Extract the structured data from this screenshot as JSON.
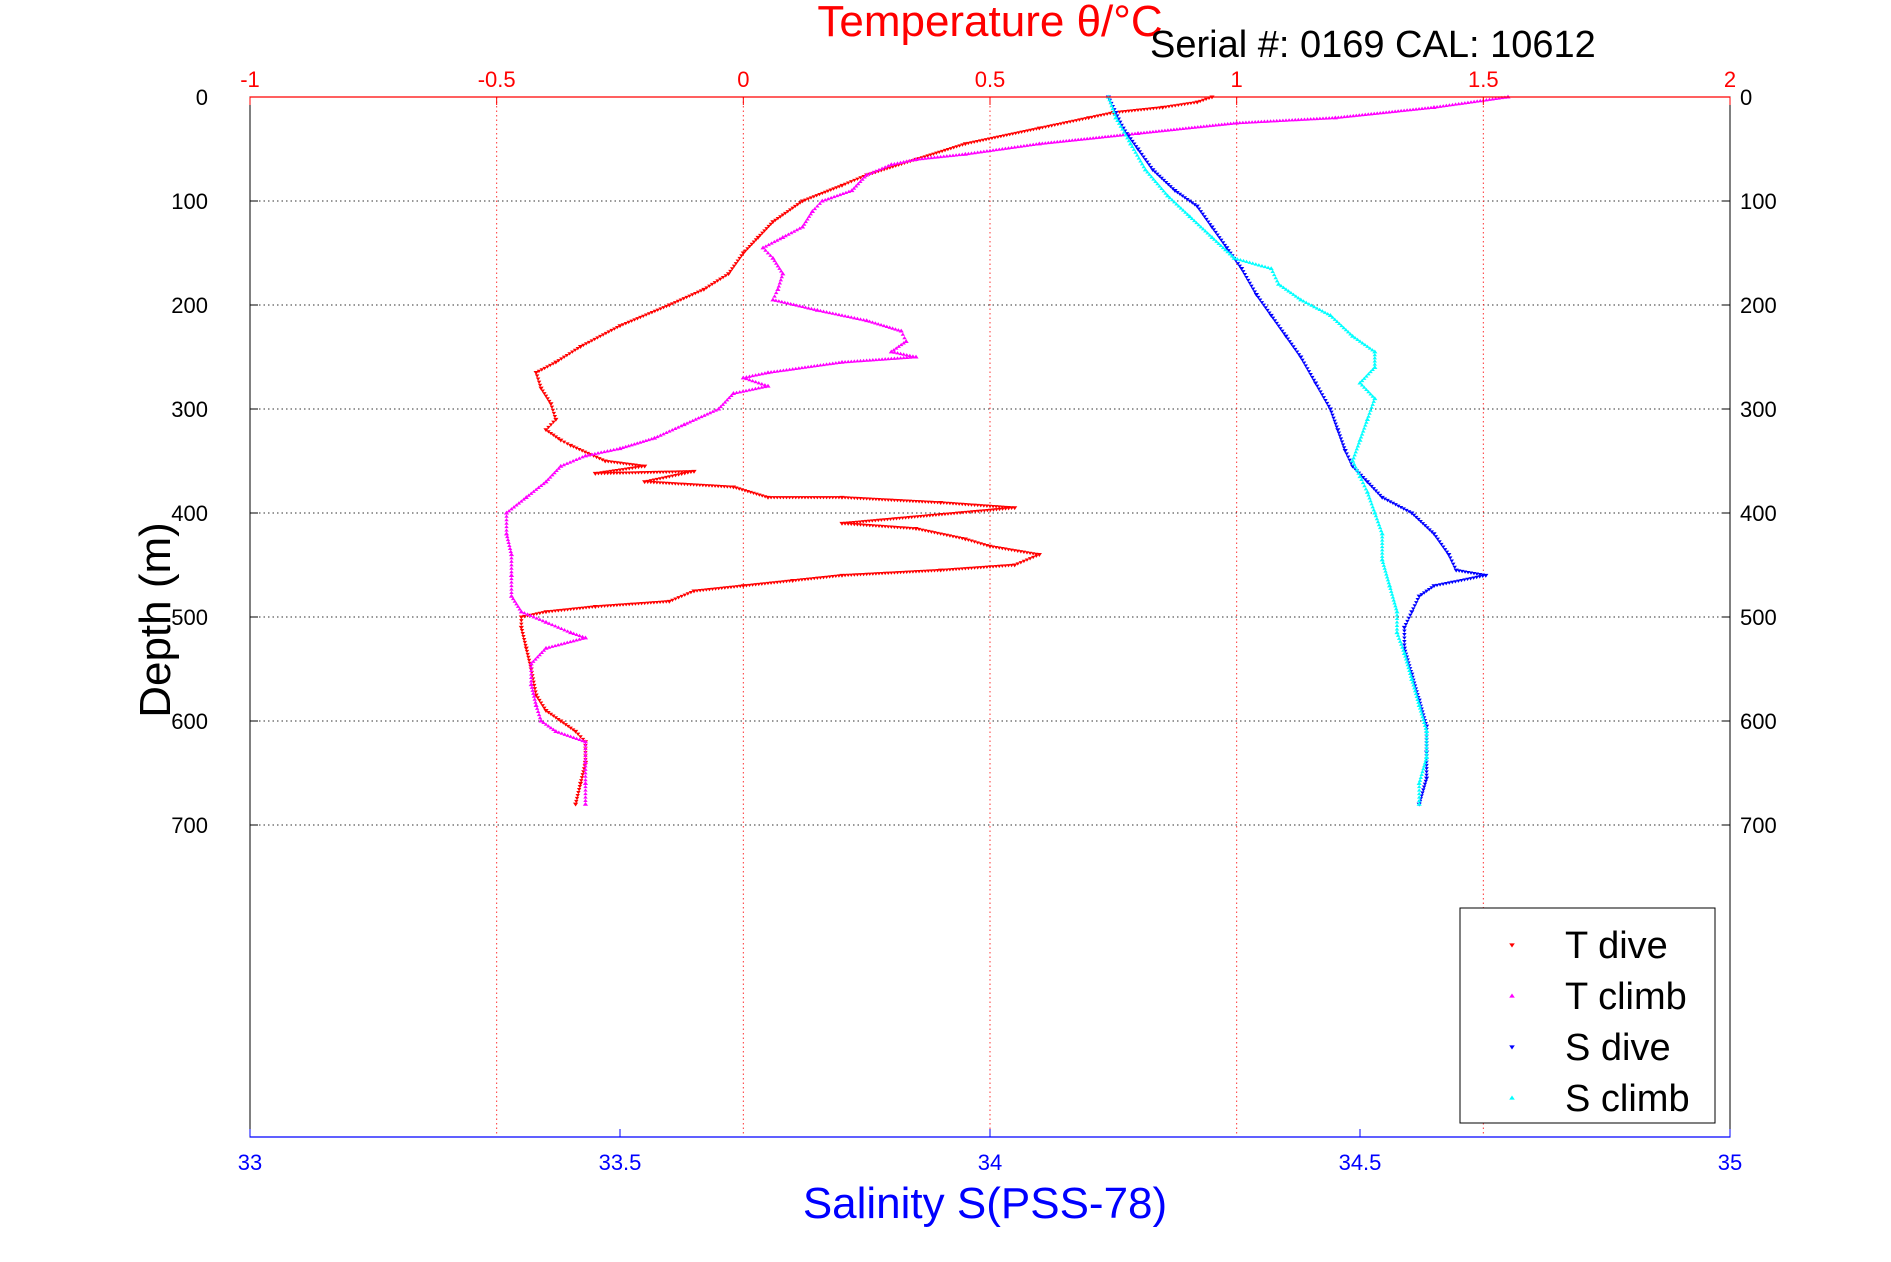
{
  "chart_data": {
    "type": "scatter",
    "title_temperature": "Temperature θ/°C",
    "serial_label": "Serial #: 0169 CAL: 10612",
    "ylabel": "Depth (m)",
    "xlabel_salinity": "Salinity S(PSS-78)",
    "ylim": [
      0,
      1000
    ],
    "y_reversed": true,
    "y_ticks": [
      0,
      100,
      200,
      300,
      400,
      500,
      600,
      700
    ],
    "y_tick_labels": [
      "0",
      "100",
      "200",
      "300",
      "400",
      "500",
      "600",
      "700"
    ],
    "temperature_axis": {
      "range": [
        -1,
        2
      ],
      "ticks": [
        -1,
        -0.5,
        0,
        0.5,
        1,
        1.5,
        2
      ],
      "tick_labels": [
        "-1",
        "-0.5",
        "0",
        "0.5",
        "1",
        "1.5",
        "2"
      ],
      "color": "#ff0000"
    },
    "salinity_axis": {
      "range": [
        33,
        35
      ],
      "ticks": [
        33,
        33.5,
        34,
        34.5,
        35
      ],
      "tick_labels": [
        "33",
        "33.5",
        "34",
        "34.5",
        "35"
      ],
      "color": "#0000ff"
    },
    "grid": true,
    "legend_position": "bottom-right",
    "series": [
      {
        "name": "T dive",
        "axis": "temperature",
        "marker": "triangle-down",
        "color": "#ff0000",
        "points": [
          [
            0.95,
            0
          ],
          [
            0.92,
            5
          ],
          [
            0.85,
            10
          ],
          [
            0.75,
            15
          ],
          [
            0.7,
            20
          ],
          [
            0.6,
            30
          ],
          [
            0.45,
            45
          ],
          [
            0.35,
            60
          ],
          [
            0.25,
            75
          ],
          [
            0.2,
            85
          ],
          [
            0.12,
            100
          ],
          [
            0.06,
            120
          ],
          [
            0.03,
            135
          ],
          [
            0.0,
            150
          ],
          [
            -0.03,
            170
          ],
          [
            -0.08,
            185
          ],
          [
            -0.15,
            200
          ],
          [
            -0.25,
            220
          ],
          [
            -0.33,
            240
          ],
          [
            -0.38,
            255
          ],
          [
            -0.42,
            265
          ],
          [
            -0.41,
            280
          ],
          [
            -0.39,
            295
          ],
          [
            -0.38,
            310
          ],
          [
            -0.4,
            320
          ],
          [
            -0.37,
            330
          ],
          [
            -0.35,
            335
          ],
          [
            -0.28,
            350
          ],
          [
            -0.2,
            355
          ],
          [
            -0.3,
            362
          ],
          [
            -0.1,
            360
          ],
          [
            -0.2,
            370
          ],
          [
            -0.02,
            375
          ],
          [
            0.05,
            385
          ],
          [
            0.2,
            385
          ],
          [
            0.4,
            390
          ],
          [
            0.55,
            395
          ],
          [
            0.2,
            410
          ],
          [
            0.35,
            415
          ],
          [
            0.45,
            425
          ],
          [
            0.5,
            432
          ],
          [
            0.6,
            440
          ],
          [
            0.55,
            450
          ],
          [
            0.4,
            455
          ],
          [
            0.2,
            460
          ],
          [
            0.1,
            465
          ],
          [
            0.0,
            470
          ],
          [
            -0.1,
            475
          ],
          [
            -0.15,
            485
          ],
          [
            -0.3,
            490
          ],
          [
            -0.4,
            495
          ],
          [
            -0.45,
            500
          ],
          [
            -0.45,
            510
          ],
          [
            -0.44,
            530
          ],
          [
            -0.43,
            550
          ],
          [
            -0.42,
            575
          ],
          [
            -0.4,
            590
          ],
          [
            -0.37,
            600
          ],
          [
            -0.34,
            610
          ],
          [
            -0.32,
            620
          ],
          [
            -0.32,
            640
          ],
          [
            -0.33,
            660
          ],
          [
            -0.34,
            680
          ]
        ]
      },
      {
        "name": "T climb",
        "axis": "temperature",
        "marker": "triangle-up",
        "color": "#ff00ff",
        "points": [
          [
            1.55,
            0
          ],
          [
            1.4,
            10
          ],
          [
            1.2,
            20
          ],
          [
            1.0,
            25
          ],
          [
            0.8,
            35
          ],
          [
            0.6,
            45
          ],
          [
            0.45,
            55
          ],
          [
            0.35,
            60
          ],
          [
            0.3,
            65
          ],
          [
            0.25,
            75
          ],
          [
            0.22,
            90
          ],
          [
            0.16,
            100
          ],
          [
            0.14,
            110
          ],
          [
            0.12,
            125
          ],
          [
            0.08,
            135
          ],
          [
            0.04,
            145
          ],
          [
            0.06,
            155
          ],
          [
            0.08,
            170
          ],
          [
            0.07,
            185
          ],
          [
            0.06,
            195
          ],
          [
            0.15,
            205
          ],
          [
            0.25,
            215
          ],
          [
            0.32,
            225
          ],
          [
            0.33,
            235
          ],
          [
            0.3,
            245
          ],
          [
            0.35,
            250
          ],
          [
            0.2,
            255
          ],
          [
            0.05,
            265
          ],
          [
            0.0,
            270
          ],
          [
            0.05,
            278
          ],
          [
            -0.02,
            285
          ],
          [
            -0.05,
            300
          ],
          [
            -0.12,
            315
          ],
          [
            -0.18,
            328
          ],
          [
            -0.25,
            338
          ],
          [
            -0.32,
            345
          ],
          [
            -0.37,
            355
          ],
          [
            -0.4,
            370
          ],
          [
            -0.44,
            385
          ],
          [
            -0.48,
            400
          ],
          [
            -0.48,
            420
          ],
          [
            -0.47,
            440
          ],
          [
            -0.47,
            460
          ],
          [
            -0.47,
            480
          ],
          [
            -0.45,
            495
          ],
          [
            -0.4,
            505
          ],
          [
            -0.35,
            515
          ],
          [
            -0.32,
            520
          ],
          [
            -0.4,
            530
          ],
          [
            -0.43,
            545
          ],
          [
            -0.43,
            565
          ],
          [
            -0.42,
            585
          ],
          [
            -0.41,
            600
          ],
          [
            -0.38,
            610
          ],
          [
            -0.32,
            620
          ],
          [
            -0.32,
            640
          ],
          [
            -0.32,
            660
          ],
          [
            -0.32,
            680
          ]
        ]
      },
      {
        "name": "S dive",
        "axis": "salinity",
        "marker": "triangle-down",
        "color": "#0000ff",
        "points": [
          [
            34.16,
            0
          ],
          [
            34.17,
            15
          ],
          [
            34.18,
            30
          ],
          [
            34.2,
            50
          ],
          [
            34.22,
            70
          ],
          [
            34.25,
            90
          ],
          [
            34.28,
            105
          ],
          [
            34.3,
            125
          ],
          [
            34.32,
            145
          ],
          [
            34.34,
            165
          ],
          [
            34.36,
            190
          ],
          [
            34.38,
            210
          ],
          [
            34.4,
            230
          ],
          [
            34.42,
            250
          ],
          [
            34.44,
            275
          ],
          [
            34.46,
            300
          ],
          [
            34.47,
            320
          ],
          [
            34.48,
            340
          ],
          [
            34.49,
            355
          ],
          [
            34.51,
            370
          ],
          [
            34.53,
            385
          ],
          [
            34.57,
            400
          ],
          [
            34.6,
            420
          ],
          [
            34.62,
            440
          ],
          [
            34.63,
            455
          ],
          [
            34.67,
            460
          ],
          [
            34.6,
            470
          ],
          [
            34.58,
            480
          ],
          [
            34.57,
            495
          ],
          [
            34.56,
            510
          ],
          [
            34.56,
            530
          ],
          [
            34.57,
            555
          ],
          [
            34.58,
            580
          ],
          [
            34.59,
            605
          ],
          [
            34.59,
            630
          ],
          [
            34.59,
            655
          ],
          [
            34.58,
            680
          ]
        ]
      },
      {
        "name": "S climb",
        "axis": "salinity",
        "marker": "triangle-up",
        "color": "#00ffff",
        "points": [
          [
            34.16,
            0
          ],
          [
            34.17,
            20
          ],
          [
            34.19,
            45
          ],
          [
            34.21,
            70
          ],
          [
            34.24,
            95
          ],
          [
            34.27,
            115
          ],
          [
            34.3,
            135
          ],
          [
            34.33,
            155
          ],
          [
            34.38,
            165
          ],
          [
            34.39,
            180
          ],
          [
            34.42,
            195
          ],
          [
            34.46,
            210
          ],
          [
            34.49,
            230
          ],
          [
            34.52,
            245
          ],
          [
            34.52,
            260
          ],
          [
            34.5,
            275
          ],
          [
            34.52,
            290
          ],
          [
            34.51,
            310
          ],
          [
            34.5,
            330
          ],
          [
            34.49,
            350
          ],
          [
            34.5,
            365
          ],
          [
            34.51,
            380
          ],
          [
            34.52,
            400
          ],
          [
            34.53,
            420
          ],
          [
            34.53,
            445
          ],
          [
            34.54,
            470
          ],
          [
            34.55,
            495
          ],
          [
            34.55,
            515
          ],
          [
            34.56,
            535
          ],
          [
            34.57,
            560
          ],
          [
            34.58,
            585
          ],
          [
            34.59,
            610
          ],
          [
            34.59,
            635
          ],
          [
            34.58,
            660
          ],
          [
            34.58,
            680
          ]
        ]
      }
    ]
  }
}
